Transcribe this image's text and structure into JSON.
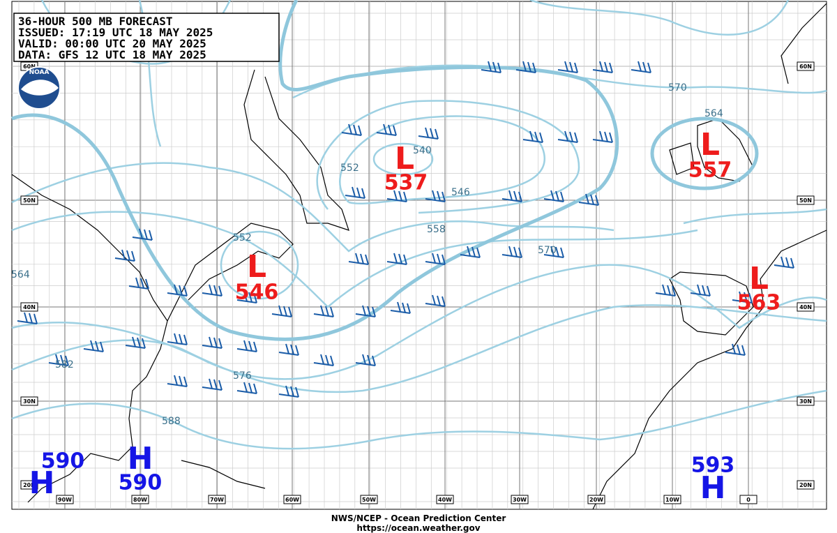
{
  "header": {
    "lines": [
      "36-HOUR 500 MB FORECAST",
      "ISSUED: 17:19 UTC 18 MAY 2025",
      "VALID:  00:00 UTC 20 MAY 2025",
      "DATA:   GFS 12 UTC 18 MAY 2025"
    ]
  },
  "logo": "NOAA",
  "latitude_labels": [
    "60N",
    "50N",
    "40N",
    "30N",
    "20N"
  ],
  "longitude_labels": [
    "90W",
    "80W",
    "70W",
    "60W",
    "50W",
    "40W",
    "30W",
    "20W",
    "10W",
    "0"
  ],
  "contour_labels": [
    "552",
    "540",
    "546",
    "552",
    "558",
    "570",
    "570",
    "564",
    "576",
    "582",
    "588",
    "564"
  ],
  "centers": [
    {
      "type": "L",
      "value": "537"
    },
    {
      "type": "L",
      "value": "546"
    },
    {
      "type": "L",
      "value": "557"
    },
    {
      "type": "L",
      "value": "563"
    },
    {
      "type": "H",
      "value": "590"
    },
    {
      "type": "H",
      "value": "590"
    },
    {
      "type": "H",
      "value": "593"
    }
  ],
  "footer": {
    "agency": "NWS/NCEP - Ocean Prediction Center",
    "url": "https://ocean.weather.gov"
  }
}
